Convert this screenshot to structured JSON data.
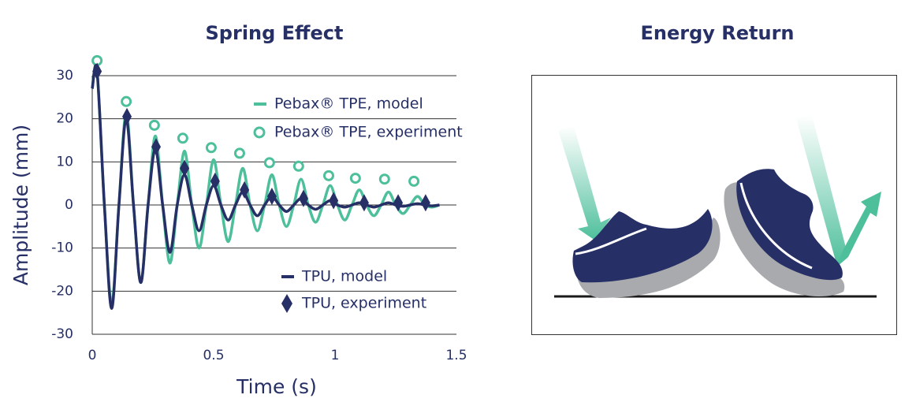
{
  "chart_data": {
    "type": "line",
    "title": "Spring Effect",
    "xlabel": "Time (s)",
    "ylabel": "Amplitude (mm)",
    "xlim": [
      0,
      1.5
    ],
    "xticks": [
      0,
      0.5,
      1,
      1.5
    ],
    "ylim": [
      -30,
      30
    ],
    "yticks": [
      -30,
      -20,
      -10,
      0,
      10,
      20,
      30
    ],
    "grid": true,
    "series": [
      {
        "name": "Pebax® TPE, model",
        "color": "#4dbf9b",
        "marker": "line",
        "x": [
          0,
          0.02,
          0.05,
          0.08,
          0.11,
          0.14,
          0.17,
          0.2,
          0.23,
          0.26,
          0.29,
          0.32,
          0.35,
          0.38,
          0.41,
          0.44,
          0.47,
          0.5,
          0.53,
          0.56,
          0.59,
          0.62,
          0.65,
          0.68,
          0.71,
          0.74,
          0.77,
          0.8,
          0.83,
          0.86,
          0.89,
          0.92,
          0.95,
          0.98,
          1.01,
          1.04,
          1.07,
          1.1,
          1.13,
          1.16,
          1.19,
          1.22,
          1.25,
          1.28,
          1.31,
          1.34,
          1.37,
          1.4,
          1.43
        ],
        "values": [
          27,
          31,
          0,
          -23,
          0,
          21.5,
          0,
          -18,
          0,
          16,
          0,
          -13.5,
          0,
          12.5,
          0,
          -10,
          0,
          10.5,
          0,
          -8.5,
          0,
          8.5,
          0,
          -6,
          0,
          7,
          0,
          -5,
          0,
          6,
          0,
          -4,
          0,
          4.5,
          0,
          -3.5,
          0,
          3.5,
          0,
          -2.5,
          0,
          3,
          0,
          -2,
          0,
          2,
          0,
          -0.5,
          0
        ]
      },
      {
        "name": "Pebax® TPE, experiment",
        "color": "#4dbf9b",
        "marker": "circle",
        "x": [
          0.02,
          0.14,
          0.256,
          0.373,
          0.49,
          0.607,
          0.73,
          0.85,
          0.974,
          1.084,
          1.204,
          1.325
        ],
        "values": [
          33.5,
          24,
          18.5,
          15.5,
          13.3,
          12,
          9.8,
          9,
          6.8,
          6.2,
          6,
          5.5
        ]
      },
      {
        "name": "TPU, model",
        "color": "#262f66",
        "marker": "line",
        "x": [
          0,
          0.02,
          0.05,
          0.08,
          0.11,
          0.14,
          0.17,
          0.2,
          0.23,
          0.26,
          0.29,
          0.32,
          0.35,
          0.38,
          0.41,
          0.44,
          0.47,
          0.5,
          0.53,
          0.56,
          0.59,
          0.62,
          0.65,
          0.68,
          0.71,
          0.74,
          0.77,
          0.8,
          0.83,
          0.86,
          0.89,
          0.92,
          0.95,
          0.98,
          1.01,
          1.04,
          1.07,
          1.1,
          1.13,
          1.16,
          1.19,
          1.22,
          1.25,
          1.28,
          1.31,
          1.34,
          1.37,
          1.4,
          1.43
        ],
        "values": [
          27,
          31,
          0,
          -24,
          0,
          20,
          0,
          -18,
          0,
          13,
          0,
          -11,
          0,
          7,
          0,
          -6,
          0,
          4.5,
          0,
          -3.5,
          0,
          3,
          0,
          -2.5,
          0,
          2,
          0,
          -1.5,
          0,
          1.5,
          0,
          -1,
          0,
          1,
          0,
          -0.5,
          0,
          0.5,
          0,
          -0.5,
          0,
          0.5,
          0,
          -0.3,
          0,
          0.3,
          0,
          -0.2,
          0
        ]
      },
      {
        "name": "TPU, experiment",
        "color": "#262f66",
        "marker": "diamond",
        "x": [
          0.02,
          0.143,
          0.263,
          0.38,
          0.506,
          0.627,
          0.74,
          0.87,
          0.994,
          1.12,
          1.26,
          1.373
        ],
        "values": [
          31,
          20.5,
          13.5,
          8.5,
          5.5,
          3.5,
          2,
          1.5,
          1,
          0.5,
          0.5,
          0.5
        ]
      }
    ]
  },
  "illustration": {
    "title": "Energy Return"
  }
}
